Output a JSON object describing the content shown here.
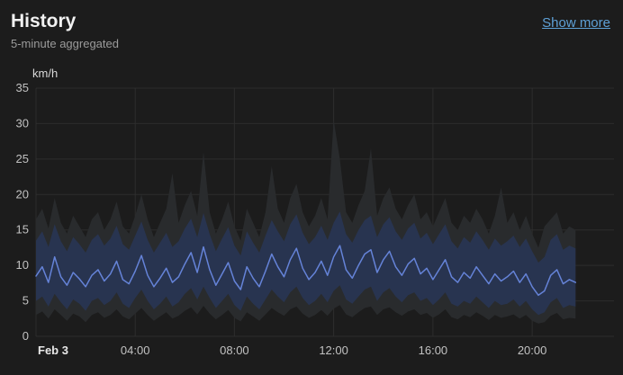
{
  "header": {
    "title": "History",
    "subtitle": "5-minute aggregated",
    "show_more_label": "Show more"
  },
  "chart_data": {
    "type": "line",
    "title": "History",
    "ylabel": "km/h",
    "ylim": [
      0,
      35
    ],
    "yticks": [
      0,
      5,
      10,
      15,
      20,
      25,
      30,
      35
    ],
    "x_hours_domain": [
      0,
      23.3
    ],
    "x_step_hours": 0.25,
    "xticks": [
      {
        "hour": 0,
        "label": "Feb 3"
      },
      {
        "hour": 4,
        "label": "04:00"
      },
      {
        "hour": 8,
        "label": "08:00"
      },
      {
        "hour": 12,
        "label": "12:00"
      },
      {
        "hour": 16,
        "label": "16:00"
      },
      {
        "hour": 20,
        "label": "20:00"
      }
    ],
    "grid": true,
    "legend": "none",
    "colors": {
      "background": "#1c1c1c",
      "grid": "#2d2d2d",
      "tick_label": "#c2c2c2",
      "date_label": "#e8e8e8",
      "axis_unit_label": "#d9d9d9",
      "link": "#5ea0d6",
      "gust_band": "#292b2d",
      "speed_band": "#283450",
      "mean_line": "#6583d8"
    },
    "series": [
      {
        "name": "wind-gust-range",
        "type": "band",
        "color": "#292b2d",
        "min": [
          3.0,
          3.5,
          2.5,
          3.8,
          3.0,
          2.2,
          3.2,
          2.8,
          2.0,
          3.0,
          3.4,
          2.6,
          3.0,
          3.8,
          2.8,
          2.4,
          3.2,
          4.0,
          3.0,
          2.2,
          2.8,
          3.4,
          2.5,
          2.9,
          3.6,
          4.1,
          3.1,
          4.3,
          3.2,
          2.4,
          3.0,
          3.7,
          2.6,
          2.1,
          3.4,
          2.8,
          2.2,
          3.1,
          4.0,
          3.4,
          2.9,
          3.8,
          4.2,
          3.2,
          2.6,
          3.0,
          3.7,
          2.9,
          3.9,
          4.4,
          3.1,
          2.7,
          3.4,
          4.0,
          4.2,
          3.0,
          3.8,
          4.1,
          3.4,
          2.9,
          3.5,
          3.8,
          3.0,
          3.3,
          2.6,
          3.1,
          3.8,
          2.7,
          2.4,
          3.0,
          2.7,
          3.4,
          2.9,
          2.3,
          3.0,
          2.6,
          2.8,
          3.1,
          2.5,
          3.0,
          2.2,
          1.8,
          2.0,
          2.9,
          3.3,
          2.4,
          2.6,
          2.5
        ],
        "max": [
          16.5,
          18.0,
          15.2,
          19.5,
          16.0,
          14.5,
          17.0,
          15.5,
          14.0,
          16.5,
          17.5,
          15.0,
          16.5,
          19.0,
          15.5,
          14.5,
          17.0,
          20.0,
          16.5,
          14.0,
          16.0,
          18.0,
          23.0,
          16.0,
          18.5,
          20.5,
          17.0,
          26.0,
          17.5,
          14.5,
          16.5,
          19.0,
          15.5,
          13.5,
          18.0,
          16.0,
          14.0,
          17.5,
          24.0,
          18.0,
          16.0,
          19.5,
          21.5,
          17.5,
          15.5,
          17.0,
          19.5,
          16.5,
          30.5,
          25.0,
          17.5,
          16.0,
          18.5,
          20.5,
          26.5,
          17.0,
          19.5,
          21.0,
          18.0,
          16.5,
          18.5,
          20.0,
          16.5,
          17.5,
          15.5,
          17.5,
          19.5,
          16.0,
          15.0,
          17.0,
          16.0,
          18.0,
          16.5,
          14.5,
          17.0,
          21.0,
          16.0,
          17.5,
          15.0,
          17.0,
          14.5,
          12.5,
          15.5,
          16.5,
          17.5,
          14.5,
          15.5,
          15.0
        ]
      },
      {
        "name": "wind-speed-range",
        "type": "band",
        "color": "#283450",
        "min": [
          5.0,
          5.6,
          4.2,
          6.0,
          4.8,
          3.8,
          5.2,
          4.6,
          3.6,
          5.0,
          5.4,
          4.4,
          5.0,
          6.2,
          4.6,
          4.0,
          5.4,
          6.6,
          5.0,
          3.8,
          4.6,
          5.6,
          4.2,
          4.8,
          6.0,
          6.8,
          5.2,
          7.0,
          5.4,
          4.0,
          5.0,
          6.0,
          4.4,
          3.6,
          5.6,
          4.6,
          3.8,
          5.2,
          6.6,
          5.6,
          4.8,
          6.2,
          7.0,
          5.4,
          4.4,
          5.0,
          6.0,
          4.8,
          6.4,
          7.2,
          5.2,
          4.6,
          5.6,
          6.6,
          7.0,
          5.0,
          6.2,
          6.8,
          5.6,
          4.8,
          5.8,
          6.2,
          5.0,
          5.4,
          4.4,
          5.2,
          6.2,
          4.6,
          4.2,
          5.0,
          4.6,
          5.6,
          4.8,
          4.0,
          5.0,
          4.4,
          4.6,
          5.2,
          4.2,
          5.0,
          3.8,
          3.0,
          3.4,
          4.8,
          5.4,
          4.0,
          4.4,
          4.2
        ],
        "max": [
          13.5,
          14.8,
          12.6,
          15.8,
          13.4,
          12.0,
          14.0,
          13.0,
          11.8,
          13.6,
          14.4,
          12.8,
          13.8,
          15.6,
          13.0,
          12.2,
          14.2,
          16.2,
          13.6,
          11.8,
          13.2,
          14.6,
          12.6,
          13.4,
          15.2,
          16.6,
          14.0,
          17.4,
          14.4,
          12.0,
          13.8,
          15.4,
          12.8,
          11.4,
          14.8,
          13.2,
          11.8,
          14.2,
          16.4,
          14.8,
          13.4,
          15.8,
          17.2,
          14.6,
          13.0,
          14.0,
          15.6,
          13.6,
          16.0,
          17.6,
          14.4,
          13.2,
          15.0,
          16.4,
          17.0,
          14.0,
          15.8,
          16.8,
          14.8,
          13.6,
          15.2,
          16.0,
          13.8,
          14.6,
          13.0,
          14.4,
          15.8,
          13.4,
          12.4,
          14.0,
          13.2,
          14.8,
          13.6,
          12.2,
          13.8,
          12.8,
          13.4,
          14.2,
          12.6,
          13.8,
          12.0,
          10.4,
          11.2,
          13.6,
          14.4,
          12.2,
          12.8,
          12.4
        ]
      },
      {
        "name": "wind-speed-mean",
        "type": "line",
        "color": "#6583d8",
        "values": [
          8.5,
          9.8,
          7.6,
          11.2,
          8.4,
          7.2,
          9.0,
          8.1,
          7.0,
          8.6,
          9.4,
          7.8,
          8.8,
          10.6,
          8.0,
          7.4,
          9.2,
          11.4,
          8.6,
          7.0,
          8.2,
          9.6,
          7.6,
          8.4,
          10.2,
          11.8,
          9.0,
          12.6,
          9.4,
          7.2,
          8.8,
          10.4,
          7.8,
          6.6,
          9.8,
          8.2,
          7.0,
          9.2,
          11.6,
          9.8,
          8.4,
          10.8,
          12.4,
          9.6,
          8.0,
          9.0,
          10.6,
          8.6,
          11.2,
          12.8,
          9.4,
          8.2,
          10.0,
          11.6,
          12.2,
          9.0,
          10.8,
          12.0,
          9.8,
          8.6,
          10.2,
          11.0,
          8.8,
          9.6,
          8.0,
          9.4,
          10.8,
          8.4,
          7.6,
          9.0,
          8.2,
          9.8,
          8.6,
          7.4,
          8.8,
          7.8,
          8.4,
          9.2,
          7.6,
          8.8,
          7.0,
          5.8,
          6.4,
          8.6,
          9.4,
          7.4,
          8.0,
          7.6
        ]
      }
    ]
  }
}
